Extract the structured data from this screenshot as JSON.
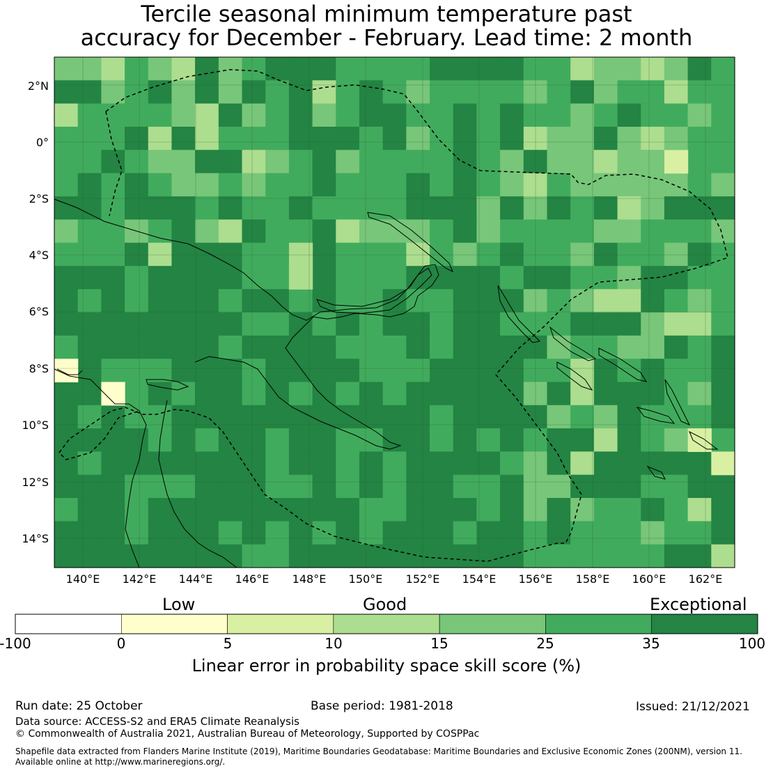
{
  "title": {
    "line1": "Tercile seasonal minimum temperature past",
    "line2": "accuracy for December - February. Lead time: 2 month"
  },
  "map": {
    "lat_labels": [
      "2°N",
      "0°",
      "2°S",
      "4°S",
      "6°S",
      "8°S",
      "10°S",
      "12°S",
      "14°S"
    ],
    "lon_labels": [
      "140°E",
      "142°E",
      "144°E",
      "146°E",
      "148°E",
      "150°E",
      "152°E",
      "154°E",
      "156°E",
      "158°E",
      "160°E",
      "162°E"
    ]
  },
  "colorbar": {
    "categories": [
      "Low",
      "Good",
      "Exceptional"
    ],
    "tick_labels": [
      "-100",
      "0",
      "5",
      "10",
      "15",
      "25",
      "35",
      "100"
    ],
    "colors": [
      "#ffffff",
      "#ffffcc",
      "#d9f0a3",
      "#addd8e",
      "#78c679",
      "#41ab5d",
      "#238443"
    ],
    "title": "Linear error in probability space skill score (%)"
  },
  "footer": {
    "run_date": "Run date: 25 October",
    "base_period": "Base period: 1981-2018",
    "issued": "Issued: 21/12/2021",
    "data_source": "Data source: ACCESS-S2 and ERA5 Climate Reanalysis",
    "copyright": "© Commonwealth of Australia 2021, Australian Bureau of Meteorology, Supported by COSPPac",
    "shapefile_line1": "Shapefile data extracted from Flanders Marine Institute (2019), Maritime Boundaries Geodatabase: Maritime Boundaries and Exclusive Economic Zones (200NM), version 11.",
    "shapefile_line2": "Available online at http://www.marineregions.org/."
  }
}
